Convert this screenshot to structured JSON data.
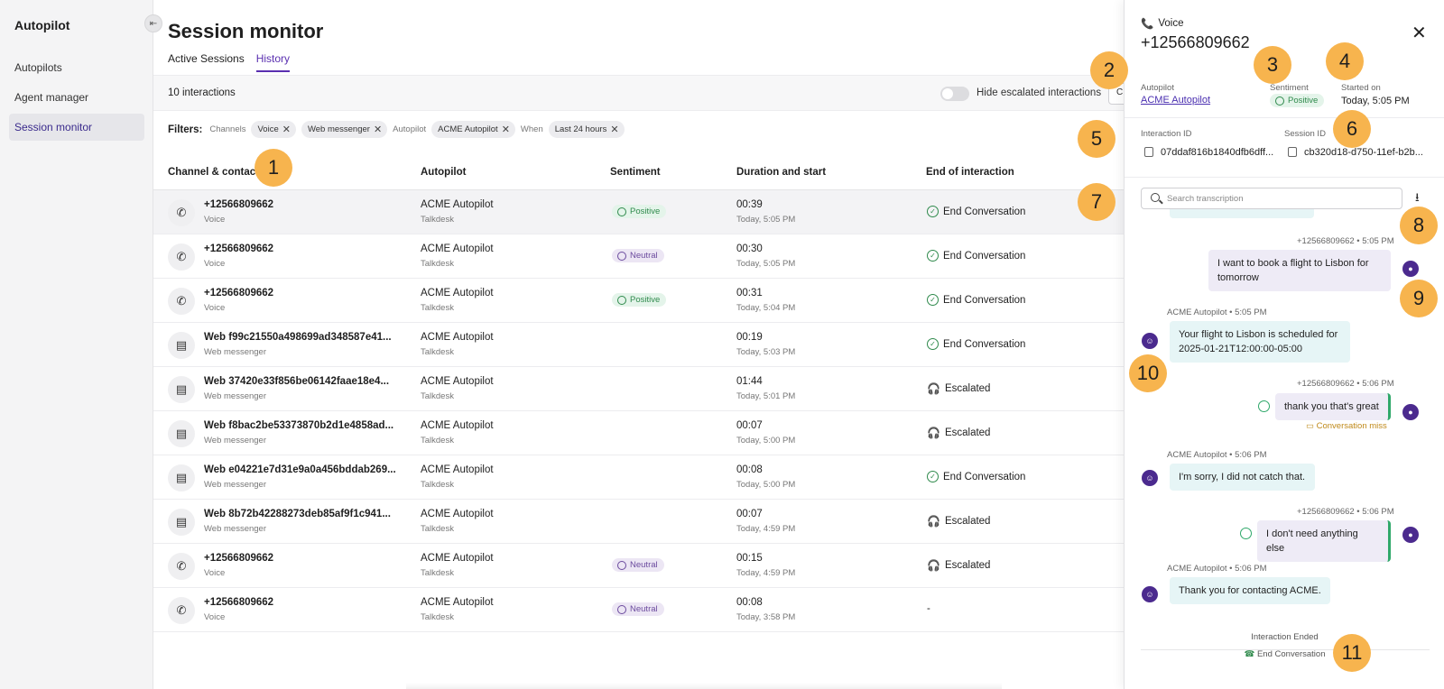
{
  "sidebar": {
    "title": "Autopilot",
    "items": [
      {
        "label": "Autopilots"
      },
      {
        "label": "Agent manager"
      },
      {
        "label": "Session monitor"
      }
    ]
  },
  "page": {
    "title": "Session monitor",
    "tabs": [
      {
        "label": "Active Sessions"
      },
      {
        "label": "History"
      }
    ],
    "count": "10 interactions",
    "toggle_label": "Hide escalated interactions"
  },
  "filters": {
    "label": "Filters:",
    "channels_label": "Channels",
    "channels": [
      "Voice",
      "Web messenger"
    ],
    "autopilot_label": "Autopilot",
    "autopilot": "ACME Autopilot",
    "when_label": "When",
    "when": "Last 24 hours"
  },
  "table": {
    "headers": [
      "Channel & contact",
      "Autopilot",
      "Sentiment",
      "Duration and start",
      "End of interaction"
    ],
    "rows": [
      {
        "contact": "+12566809662",
        "channel": "Voice",
        "icon": "phone-icon",
        "autopilot": "ACME Autopilot",
        "org": "Talkdesk",
        "sentiment": "Positive",
        "duration": "00:39",
        "start": "Today, 5:05 PM",
        "end": "End Conversation",
        "end_type": "ok"
      },
      {
        "contact": "+12566809662",
        "channel": "Voice",
        "icon": "phone-icon",
        "autopilot": "ACME Autopilot",
        "org": "Talkdesk",
        "sentiment": "Neutral",
        "duration": "00:30",
        "start": "Today, 5:05 PM",
        "end": "End Conversation",
        "end_type": "ok"
      },
      {
        "contact": "+12566809662",
        "channel": "Voice",
        "icon": "phone-icon",
        "autopilot": "ACME Autopilot",
        "org": "Talkdesk",
        "sentiment": "Positive",
        "duration": "00:31",
        "start": "Today, 5:04 PM",
        "end": "End Conversation",
        "end_type": "ok"
      },
      {
        "contact": "Web f99c21550a498699ad348587e41...",
        "channel": "Web messenger",
        "icon": "chat-icon",
        "autopilot": "ACME Autopilot",
        "org": "Talkdesk",
        "sentiment": "",
        "duration": "00:19",
        "start": "Today, 5:03 PM",
        "end": "End Conversation",
        "end_type": "ok"
      },
      {
        "contact": "Web 37420e33f856be06142faae18e4...",
        "channel": "Web messenger",
        "icon": "chat-icon",
        "autopilot": "ACME Autopilot",
        "org": "Talkdesk",
        "sentiment": "",
        "duration": "01:44",
        "start": "Today, 5:01 PM",
        "end": "Escalated",
        "end_type": "esc"
      },
      {
        "contact": "Web f8bac2be53373870b2d1e4858ad...",
        "channel": "Web messenger",
        "icon": "chat-icon",
        "autopilot": "ACME Autopilot",
        "org": "Talkdesk",
        "sentiment": "",
        "duration": "00:07",
        "start": "Today, 5:00 PM",
        "end": "Escalated",
        "end_type": "esc"
      },
      {
        "contact": "Web e04221e7d31e9a0a456bddab269...",
        "channel": "Web messenger",
        "icon": "chat-icon",
        "autopilot": "ACME Autopilot",
        "org": "Talkdesk",
        "sentiment": "",
        "duration": "00:08",
        "start": "Today, 5:00 PM",
        "end": "End Conversation",
        "end_type": "ok"
      },
      {
        "contact": "Web 8b72b42288273deb85af9f1c941...",
        "channel": "Web messenger",
        "icon": "chat-icon",
        "autopilot": "ACME Autopilot",
        "org": "Talkdesk",
        "sentiment": "",
        "duration": "00:07",
        "start": "Today, 4:59 PM",
        "end": "Escalated",
        "end_type": "esc"
      },
      {
        "contact": "+12566809662",
        "channel": "Voice",
        "icon": "phone-icon",
        "autopilot": "ACME Autopilot",
        "org": "Talkdesk",
        "sentiment": "Neutral",
        "duration": "00:15",
        "start": "Today, 4:59 PM",
        "end": "Escalated",
        "end_type": "esc"
      },
      {
        "contact": "+12566809662",
        "channel": "Voice",
        "icon": "phone-icon",
        "autopilot": "ACME Autopilot",
        "org": "Talkdesk",
        "sentiment": "Neutral",
        "duration": "00:08",
        "start": "Today, 3:58 PM",
        "end": "-",
        "end_type": "none"
      }
    ]
  },
  "panel": {
    "channel": "Voice",
    "phone": "+12566809662",
    "autopilot_label": "Autopilot",
    "autopilot": "ACME Autopilot",
    "sentiment_label": "Sentiment",
    "sentiment": "Positive",
    "started_label": "Started on",
    "started": "Today, 5:05 PM",
    "interaction_id_label": "Interaction ID",
    "interaction_id": "07ddaf816b1840dfb6dff...",
    "session_id_label": "Session ID",
    "session_id": "cb320d18-d750-11ef-b2b...",
    "search_placeholder": "Search transcription",
    "messages": [
      {
        "meta": "+12566809662 • 5:05 PM",
        "text": "I want to book a flight to Lisbon for tomorrow"
      },
      {
        "meta": "ACME Autopilot • 5:05 PM",
        "text": "Your flight to Lisbon is scheduled for 2025-01-21T12:00:00-05:00"
      },
      {
        "meta": "+12566809662 • 5:06 PM",
        "text": "thank you that's great",
        "note": "Conversation miss"
      },
      {
        "meta": "ACME Autopilot • 5:06 PM",
        "text": "I'm sorry, I did not catch that."
      },
      {
        "meta": "+12566809662 • 5:06 PM",
        "text": "I don't need anything else"
      },
      {
        "meta": "ACME Autopilot • 5:06 PM",
        "text": "Thank you for contacting ACME."
      }
    ],
    "ended_label": "Interaction Ended",
    "ended_reason": "End Conversation"
  },
  "callouts": [
    "1",
    "2",
    "3",
    "4",
    "5",
    "6",
    "7",
    "8",
    "9",
    "10",
    "11"
  ],
  "colors": {
    "accent": "#5a2fb0",
    "callout": "#f7b44e",
    "positive": "#2f8a4c",
    "neutral": "#6b4a9e"
  }
}
